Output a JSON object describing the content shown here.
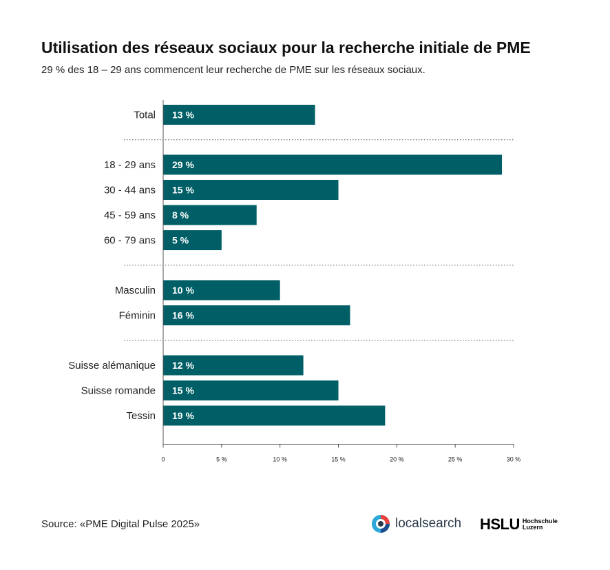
{
  "header": {
    "title": "Utilisation des réseaux sociaux pour la recherche initiale de PME",
    "subtitle": "29 % des 18 – 29 ans commencent leur recherche de PME sur les réseaux sociaux."
  },
  "chart_data": {
    "type": "bar",
    "orientation": "horizontal",
    "title": "Utilisation des réseaux sociaux pour la recherche initiale de PME",
    "subtitle": "29 % des 18 – 29 ans commencent leur recherche de PME sur les réseaux sociaux.",
    "groups": [
      {
        "categories": [
          "Total"
        ],
        "values": [
          13
        ],
        "labels": [
          "13 %"
        ]
      },
      {
        "categories": [
          "18 - 29 ans",
          "30 - 44 ans",
          "45 - 59 ans",
          "60 - 79 ans"
        ],
        "values": [
          29,
          15,
          8,
          5
        ],
        "labels": [
          "29 %",
          "15 %",
          "8 %",
          "5 %"
        ]
      },
      {
        "categories": [
          "Masculin",
          "Féminin"
        ],
        "values": [
          10,
          16
        ],
        "labels": [
          "10 %",
          "16 %"
        ]
      },
      {
        "categories": [
          "Suisse alémanique",
          "Suisse romande",
          "Tessin"
        ],
        "values": [
          12,
          15,
          19
        ],
        "labels": [
          "12 %",
          "15 %",
          "19 %"
        ]
      }
    ],
    "xlim": [
      0,
      30
    ],
    "xticks": [
      0,
      5,
      10,
      15,
      20,
      25,
      30
    ],
    "xtick_labels": [
      "0",
      "5 %",
      "10 %",
      "15 %",
      "20 %",
      "25 %",
      "30 %"
    ],
    "grid": false,
    "group_separators": "dotted",
    "colors": {
      "bar": "#005f66",
      "bar_label": "#ffffff",
      "axis": "#555555"
    }
  },
  "footer": {
    "source": "Source: «PME Digital Pulse 2025»",
    "logo_localsearch": "localsearch",
    "logo_hslu": "HSLU",
    "logo_hslu_sub1": "Hochschule",
    "logo_hslu_sub2": "Luzern"
  }
}
